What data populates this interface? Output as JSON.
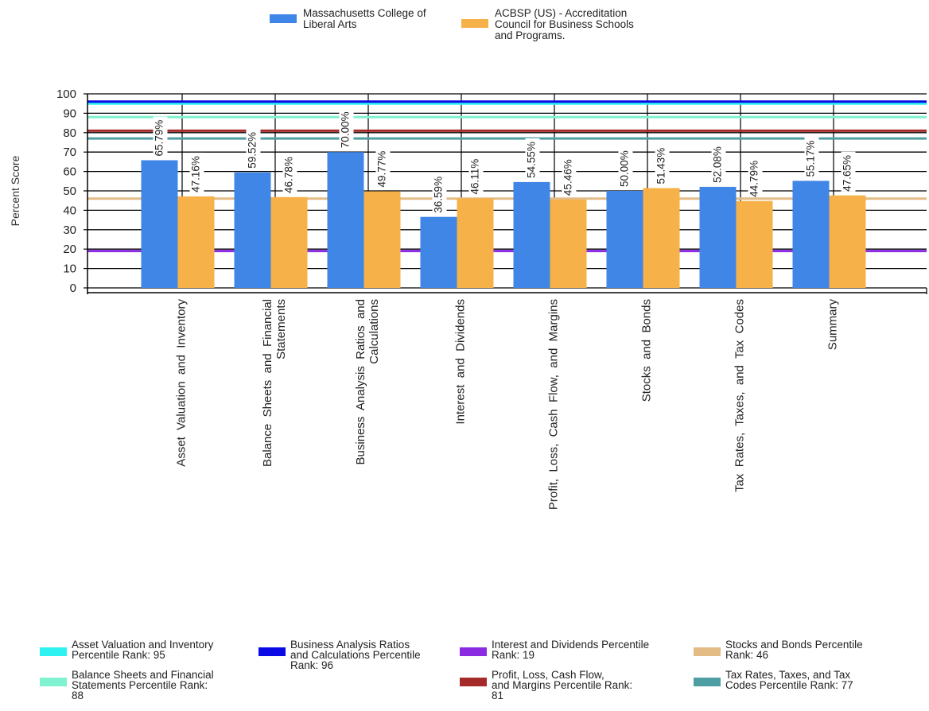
{
  "chart_data": {
    "type": "bar",
    "ylabel": "Percent Score",
    "ylim": [
      0,
      100
    ],
    "yticks": [
      0,
      10,
      20,
      30,
      40,
      50,
      60,
      70,
      80,
      90,
      100
    ],
    "grid": true,
    "legend_position": "top-center",
    "categories": [
      "Asset Valuation and Inventory",
      "Balance Sheets and Financial Statements",
      "Business Analysis Ratios and Calculations",
      "Interest and Dividends",
      "Profit, Loss, Cash Flow, and Margins",
      "Stocks and Bonds",
      "Tax Rates, Taxes, and Tax Codes",
      "Summary"
    ],
    "category_lines": [
      [
        "Asset  Valuation  and  Inventory"
      ],
      [
        "Balance  Sheets  and  Financial",
        "Statements"
      ],
      [
        "Business  Analysis  Ratios  and",
        "Calculations"
      ],
      [
        "Interest  and  Dividends"
      ],
      [
        "Profit,  Loss,  Cash  Flow,  and  Margins"
      ],
      [
        "Stocks  and  Bonds"
      ],
      [
        "Tax  Rates,  Taxes,  and  Tax  Codes"
      ],
      [
        "Summary"
      ]
    ],
    "series": [
      {
        "name": "Massachusetts College of Liberal Arts",
        "legend_lines": [
          "Massachusetts College of",
          "Liberal Arts"
        ],
        "color": "#3f86e6",
        "values": [
          65.79,
          59.52,
          70.0,
          36.59,
          54.55,
          50.0,
          52.08,
          55.17
        ],
        "labels": [
          "65.79%",
          "59.52%",
          "70.00%",
          "36.59%",
          "54.55%",
          "50.00%",
          "52.08%",
          "55.17%"
        ]
      },
      {
        "name": "ACBSP (US) - Accreditation Council for Business Schools and Programs.",
        "legend_lines": [
          "ACBSP (US) - Accreditation",
          "Council for Business Schools",
          "and Programs."
        ],
        "color": "#f6b149",
        "values": [
          47.16,
          46.78,
          49.77,
          46.11,
          45.46,
          51.43,
          44.79,
          47.65
        ],
        "labels": [
          "47.16%",
          "46.78%",
          "49.77%",
          "46.11%",
          "45.46%",
          "51.43%",
          "44.79%",
          "47.65%"
        ]
      }
    ],
    "reference_lines": [
      {
        "name": "Asset Valuation and Inventory Percentile Rank: 95",
        "value": 95,
        "color": "#2ef2f2",
        "legend_lines": [
          "Asset Valuation and Inventory",
          "Percentile Rank: 95"
        ]
      },
      {
        "name": "Balance Sheets and Financial Statements Percentile Rank: 88",
        "value": 88,
        "color": "#7ff2cf",
        "legend_lines": [
          "Balance Sheets and Financial",
          "Statements Percentile Rank:",
          "88"
        ]
      },
      {
        "name": "Business Analysis Ratios and Calculations Percentile Rank: 96",
        "value": 96,
        "color": "#0a0ae6",
        "legend_lines": [
          "Business Analysis Ratios",
          "and Calculations Percentile",
          "Rank: 96"
        ]
      },
      {
        "name": "Interest and Dividends Percentile Rank: 19",
        "value": 19,
        "color": "#8a2be2",
        "legend_lines": [
          "Interest and Dividends Percentile",
          "Rank: 19"
        ]
      },
      {
        "name": "Profit, Loss, Cash Flow, and Margins Percentile Rank: 81",
        "value": 81,
        "color": "#a52a2a",
        "legend_lines": [
          "Profit, Loss, Cash Flow,",
          "and Margins Percentile Rank:",
          "81"
        ]
      },
      {
        "name": "Stocks and Bonds Percentile Rank: 46",
        "value": 46,
        "color": "#e3bb85",
        "legend_lines": [
          "Stocks and Bonds Percentile",
          "Rank: 46"
        ]
      },
      {
        "name": "Tax Rates, Taxes, and Tax Codes Percentile Rank: 77",
        "value": 77,
        "color": "#4f9ea3",
        "legend_lines": [
          "Tax Rates, Taxes, and Tax",
          "Codes Percentile Rank: 77"
        ]
      }
    ]
  }
}
